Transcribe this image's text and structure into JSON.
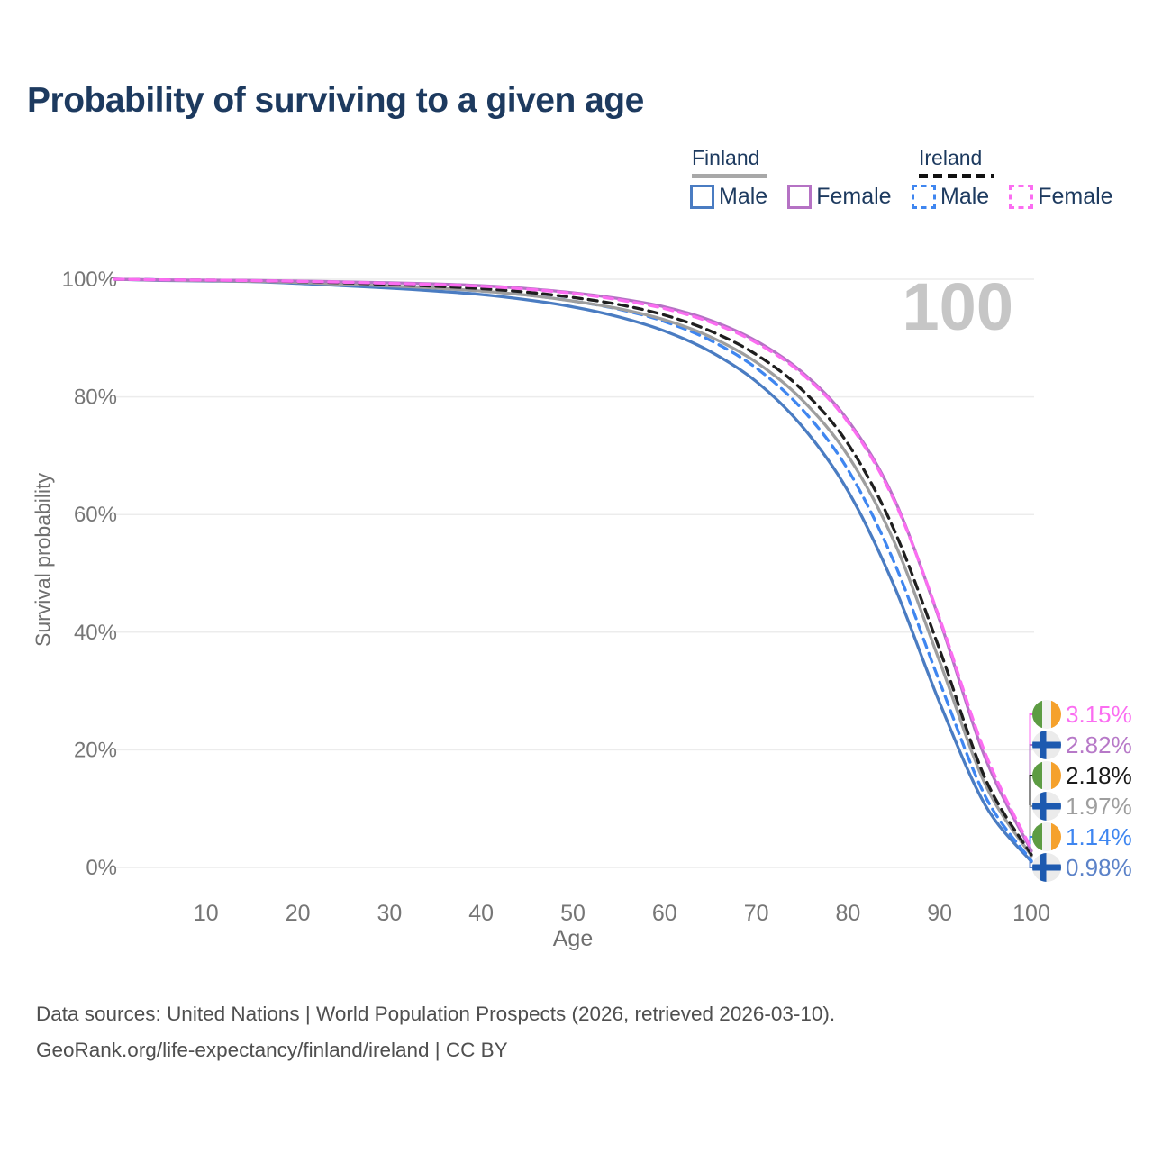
{
  "title": "Probability of surviving to a given age",
  "watermark_age": "100",
  "legend": {
    "groups": [
      {
        "label": "Finland",
        "line_style": "solid",
        "underline_color": "#a8a8a8",
        "entries": [
          {
            "label": "Male",
            "color": "#4a7cc2"
          },
          {
            "label": "Female",
            "color": "#b572c4"
          }
        ]
      },
      {
        "label": "Ireland",
        "line_style": "dashed",
        "underline_color": "#111111",
        "entries": [
          {
            "label": "Male",
            "color": "#3f86f0"
          },
          {
            "label": "Female",
            "color": "#fb6df1"
          }
        ]
      }
    ]
  },
  "chart_data": {
    "type": "line",
    "title": "Probability of surviving to a given age",
    "xlabel": "Age",
    "ylabel": "Survival probability",
    "xlim": [
      0,
      100
    ],
    "ylim": [
      0,
      100
    ],
    "grid": "horizontal",
    "x_ticks": [
      10,
      20,
      30,
      40,
      50,
      60,
      70,
      80,
      90,
      100
    ],
    "y_ticks": [
      100,
      80,
      60,
      40,
      20,
      0
    ],
    "y_tick_suffix": "%",
    "ages": [
      0,
      5,
      10,
      15,
      20,
      25,
      30,
      35,
      40,
      45,
      50,
      55,
      60,
      65,
      70,
      75,
      80,
      85,
      90,
      95,
      100
    ],
    "series": [
      {
        "name": "finland-male",
        "country": "Finland",
        "sex": "Male",
        "line": "solid",
        "color": "#4a7cc2",
        "values": [
          100,
          99.8,
          99.7,
          99.6,
          99.3,
          98.9,
          98.5,
          98.0,
          97.4,
          96.5,
          95.3,
          93.6,
          91.2,
          87.7,
          82.6,
          75.0,
          64.0,
          48.0,
          28.0,
          10.5,
          0.98
        ]
      },
      {
        "name": "ireland-male",
        "country": "Ireland",
        "sex": "Male",
        "line": "dashed",
        "color": "#3f86f0",
        "values": [
          100,
          99.9,
          99.8,
          99.7,
          99.5,
          99.2,
          98.9,
          98.5,
          98.0,
          97.3,
          96.3,
          94.9,
          92.8,
          89.6,
          84.9,
          77.9,
          67.6,
          52.0,
          31.5,
          12.0,
          1.14
        ]
      },
      {
        "name": "finland-total",
        "country": "Finland",
        "sex": "Total",
        "line": "solid",
        "color": "#9e9e9e",
        "values": [
          100,
          99.85,
          99.75,
          99.65,
          99.45,
          99.15,
          98.85,
          98.5,
          98.0,
          97.3,
          96.3,
          95.0,
          93.1,
          90.2,
          85.9,
          79.5,
          70.0,
          55.5,
          35.0,
          14.0,
          1.97
        ]
      },
      {
        "name": "ireland-total",
        "country": "Ireland",
        "sex": "Total",
        "line": "dashed",
        "color": "#1f1f1f",
        "values": [
          100,
          99.9,
          99.85,
          99.75,
          99.6,
          99.4,
          99.1,
          98.8,
          98.4,
          97.8,
          96.9,
          95.7,
          93.9,
          91.2,
          87.2,
          81.2,
          72.0,
          57.5,
          37.0,
          15.0,
          2.18
        ]
      },
      {
        "name": "finland-female",
        "country": "Finland",
        "sex": "Female",
        "line": "solid",
        "color": "#b572c4",
        "values": [
          100,
          99.9,
          99.85,
          99.8,
          99.7,
          99.55,
          99.4,
          99.2,
          98.9,
          98.4,
          97.7,
          96.7,
          95.3,
          93.0,
          89.5,
          84.2,
          76.0,
          62.8,
          42.0,
          18.5,
          2.82
        ]
      },
      {
        "name": "ireland-female",
        "country": "Ireland",
        "sex": "Female",
        "line": "dashed",
        "color": "#fb6df1",
        "values": [
          100,
          99.9,
          99.85,
          99.75,
          99.65,
          99.5,
          99.3,
          99.1,
          98.8,
          98.3,
          97.6,
          96.5,
          95.0,
          92.7,
          89.2,
          83.9,
          75.7,
          62.5,
          42.3,
          19.3,
          3.15
        ]
      }
    ],
    "end_labels": [
      {
        "flag": "ireland",
        "series": "ireland-female",
        "text": "3.15%",
        "color": "#fb6df1"
      },
      {
        "flag": "finland",
        "series": "finland-female",
        "text": "2.82%",
        "color": "#b779c8"
      },
      {
        "flag": "ireland",
        "series": "ireland-total",
        "text": "2.18%",
        "color": "#1a1a1a"
      },
      {
        "flag": "finland",
        "series": "finland-total",
        "text": "1.97%",
        "color": "#9e9e9e"
      },
      {
        "flag": "ireland",
        "series": "ireland-male",
        "text": "1.14%",
        "color": "#3f86f0"
      },
      {
        "flag": "finland",
        "series": "finland-male",
        "text": "0.98%",
        "color": "#5b82c8"
      }
    ]
  },
  "footer": {
    "line1": "Data sources: United Nations | World Population Prospects (2026, retrieved 2026-03-10).",
    "line2": "GeoRank.org/life-expectancy/finland/ireland | CC BY"
  }
}
